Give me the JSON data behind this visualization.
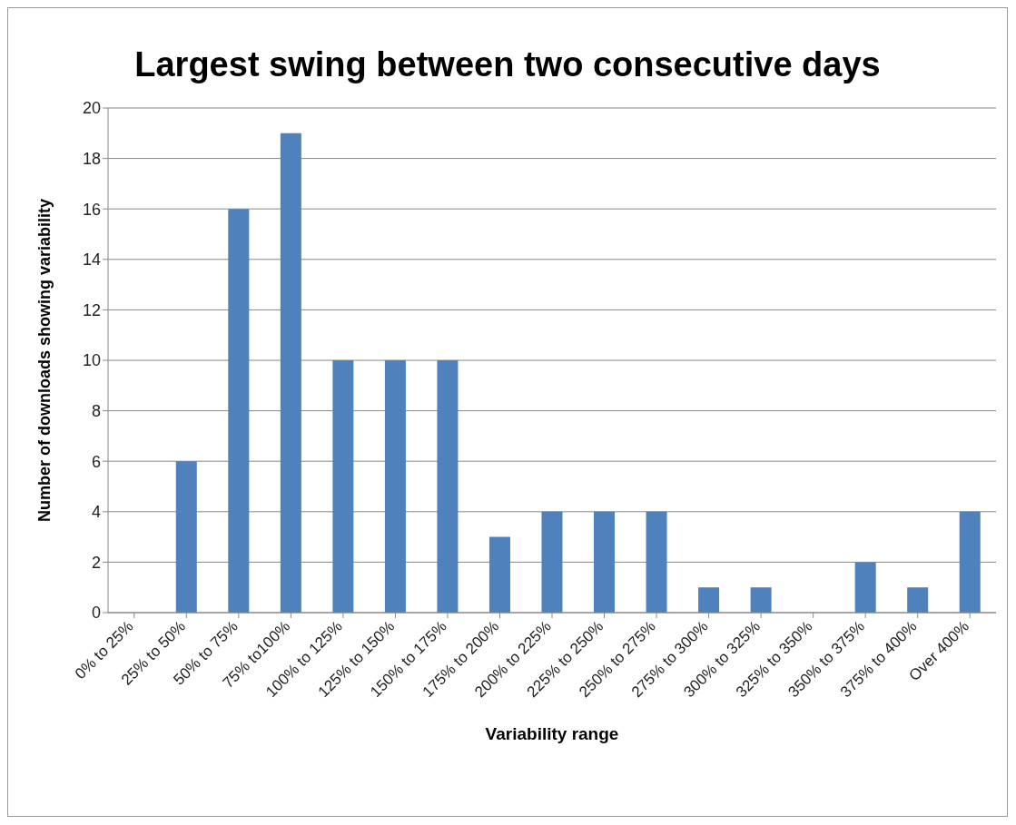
{
  "chart_data": {
    "type": "bar",
    "title": "Largest swing between two consecutive days",
    "xlabel": "Variability range",
    "ylabel": "Number of downloads showing variability",
    "categories": [
      "0% to 25%",
      "25% to 50%",
      "50% to 75%",
      "75% to100%",
      "100% to 125%",
      "125% to 150%",
      "150% to 175%",
      "175% to 200%",
      "200% to 225%",
      "225% to 250%",
      "250% to 275%",
      "275% to 300%",
      "300% to 325%",
      "325% to 350%",
      "350% to 375%",
      "375% to 400%",
      "Over 400%"
    ],
    "values": [
      0,
      6,
      16,
      19,
      10,
      10,
      10,
      3,
      4,
      4,
      4,
      1,
      1,
      0,
      2,
      1,
      4
    ],
    "color": "#4f81bd",
    "ylim": [
      0,
      20
    ],
    "yticks": [
      0,
      2,
      4,
      6,
      8,
      10,
      12,
      14,
      16,
      18,
      20
    ],
    "grid": "y",
    "legend": false
  }
}
